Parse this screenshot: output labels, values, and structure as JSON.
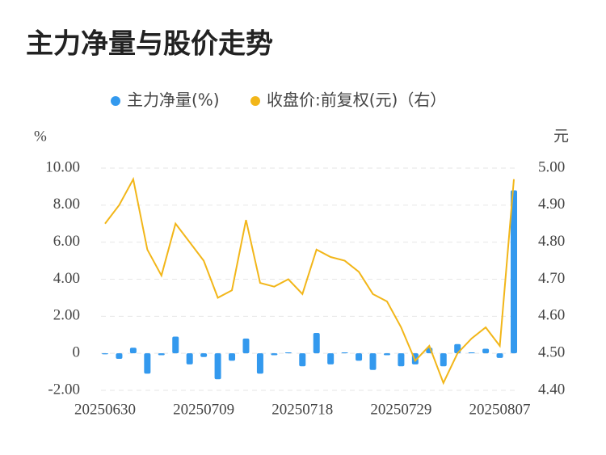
{
  "chart_data": {
    "type": "bar-line",
    "title": "主力净量与股价走势",
    "y_label": "%",
    "y2_label": "元",
    "categories": [
      "20250630",
      null,
      null,
      null,
      null,
      null,
      null,
      "20250709",
      null,
      null,
      null,
      null,
      null,
      null,
      "20250718",
      null,
      null,
      null,
      null,
      null,
      null,
      "20250729",
      null,
      null,
      null,
      null,
      null,
      null,
      "20250807",
      null
    ],
    "series": [
      {
        "name": "主力净量(%)",
        "color": "#3399ee",
        "type": "bar",
        "values": [
          -0.05,
          -0.3,
          0.3,
          -1.1,
          -0.1,
          0.9,
          -0.6,
          -0.2,
          -1.4,
          -0.4,
          0.8,
          -1.1,
          -0.1,
          0.05,
          -0.7,
          1.1,
          -0.6,
          0.05,
          -0.4,
          -0.9,
          -0.1,
          -0.7,
          -0.6,
          0.3,
          -0.7,
          0.5,
          0.05,
          0.25,
          -0.25,
          8.8
        ]
      },
      {
        "name": "收盘价:前复权(元)（右）",
        "color": "#f2b619",
        "type": "line",
        "axis": "y2",
        "values": [
          4.85,
          4.9,
          4.97,
          4.78,
          4.71,
          4.85,
          4.8,
          4.75,
          4.65,
          4.67,
          4.86,
          4.69,
          4.68,
          4.7,
          4.66,
          4.78,
          4.76,
          4.75,
          4.72,
          4.66,
          4.64,
          4.57,
          4.48,
          4.52,
          4.42,
          4.5,
          4.54,
          4.57,
          4.52,
          4.97
        ]
      }
    ],
    "ylim": [
      -2,
      10
    ],
    "yticks": [
      {
        "value": -2,
        "label": "-2.00"
      },
      0,
      {
        "value": 2,
        "label": "2.00"
      },
      {
        "value": 4,
        "label": "4.00"
      },
      {
        "value": 6,
        "label": "6.00"
      },
      {
        "value": 8,
        "label": "8.00"
      },
      {
        "value": 10,
        "label": "10.00"
      }
    ],
    "y2lim": [
      4.4,
      5.0
    ],
    "y2ticks": [
      {
        "value": 4.4,
        "label": "4.40"
      },
      {
        "value": 4.5,
        "label": "4.50"
      },
      {
        "value": 4.6,
        "label": "4.60"
      },
      {
        "value": 4.7,
        "label": "4.70"
      },
      {
        "value": 4.8,
        "label": "4.80"
      },
      {
        "value": 4.9,
        "label": "4.90"
      },
      {
        "value": 5.0,
        "label": "5.00"
      }
    ],
    "grid": true
  }
}
